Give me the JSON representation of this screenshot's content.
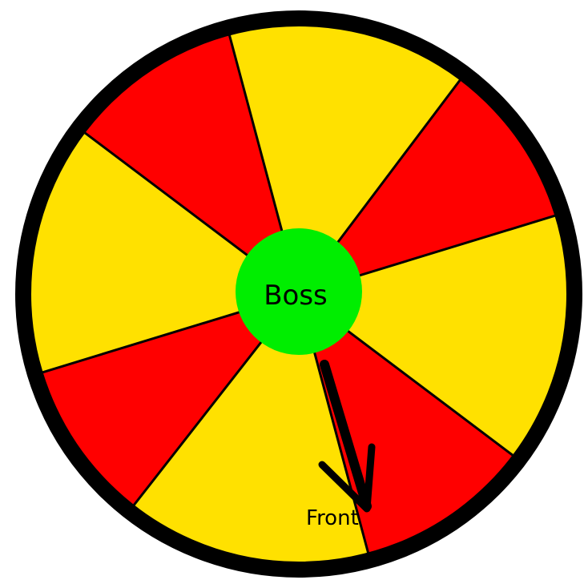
{
  "diagram": {
    "center_label": "Boss",
    "front_label": "Front",
    "segment_colors": [
      "#ffe100",
      "#ff0000",
      "#ffe100",
      "#ff0000",
      "#ffe100",
      "#ff0000",
      "#ffe100",
      "#ff0000"
    ],
    "colors": {
      "yellow": "#ffe100",
      "red": "#ff0000",
      "boss": "#00ee00",
      "outline": "#000000"
    }
  }
}
